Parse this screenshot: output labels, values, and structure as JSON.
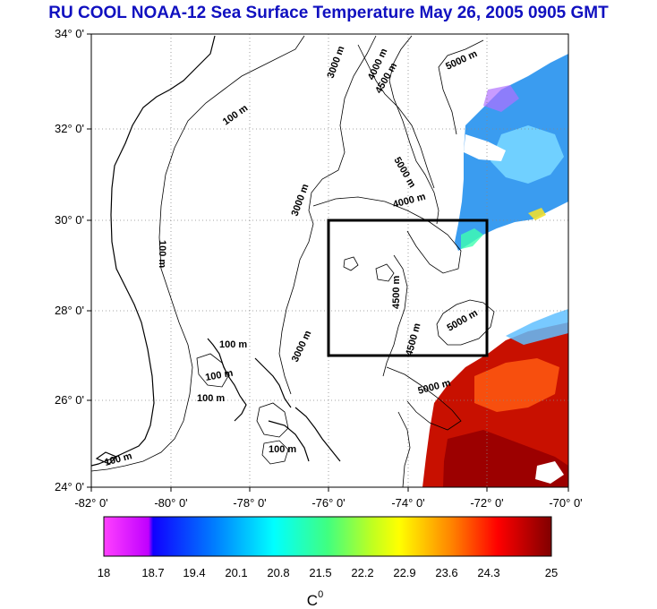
{
  "title": "RU COOL  NOAA-12 Sea Surface Temperature May 26, 2005 0905 GMT",
  "map": {
    "lat_labels": [
      "34° 0'",
      "32° 0'",
      "30° 0'",
      "28° 0'",
      "26° 0'",
      "24° 0'"
    ],
    "lon_labels": [
      "-82° 0'",
      "-80° 0'",
      "-78° 0'",
      "-76° 0'",
      "-74° 0'",
      "-72° 0'",
      "-70° 0'"
    ],
    "lat_range": [
      24,
      34
    ],
    "lon_range": [
      -82,
      -70
    ],
    "study_box": {
      "lon": [
        -76,
        -72
      ],
      "lat": [
        27,
        30
      ]
    },
    "contour_labels": {
      "m100": "100 m",
      "m3000": "3000 m",
      "m4000": "4000 m",
      "m4500": "4500 m",
      "m5000": "5000 m",
      "m5000b": "5000 m",
      "m100b": "100 m"
    }
  },
  "colorbar": {
    "ticks": [
      "18",
      "18.7",
      "19.4",
      "20.1",
      "20.8",
      "21.5",
      "22.2",
      "22.9",
      "23.6",
      "24.3",
      "25"
    ],
    "unit": "C",
    "unit_sup": "0",
    "colors": [
      "#ff00ff",
      "#2000ff",
      "#0060ff",
      "#00d0ff",
      "#30ffa0",
      "#c0ff20",
      "#ffff00",
      "#ffa000",
      "#ff4000",
      "#e00000",
      "#900000"
    ]
  },
  "sst_colors": {
    "cool": "#40a0ff",
    "cool2": "#20c0ff",
    "warm": "#d01000",
    "warm2": "#ff5000",
    "hot": "#a00000"
  }
}
